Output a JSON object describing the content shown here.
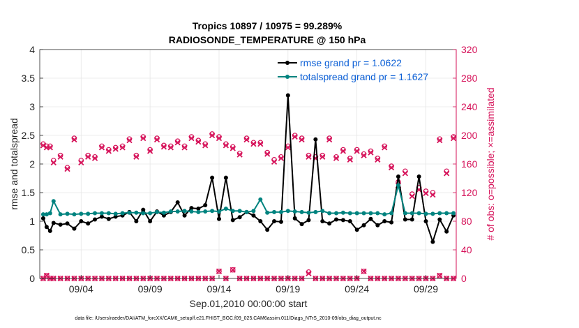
{
  "chart_data": {
    "type": "line",
    "title_line1": "Tropics 10897 / 10975 = 99.289%",
    "title_line2": "RADIOSONDE_TEMPERATURE @ 150 hPa",
    "xlabel": "Sep.01,2010 00:00:00 start",
    "ylabel_left": "rmse and totalspread",
    "ylabel_right": "# of obs: o=possible; ×=assimilated",
    "footnote": "data file: /Users/raeder/DAI/ATM_forcXX/CAM6_setup/f.e21.FHIST_BGC.f09_025.CAM6assim.011/Diags_NTrS_2010-09/obs_diag_output.nc",
    "xlim": [
      1.0,
      31.2
    ],
    "ylim_left": [
      0,
      4
    ],
    "ylim_right": [
      0,
      320
    ],
    "x_ticks": [
      4,
      9,
      14,
      19,
      24,
      29
    ],
    "x_tick_labels": [
      "09/04",
      "09/09",
      "09/14",
      "09/19",
      "09/24",
      "09/29"
    ],
    "y_left_ticks": [
      0,
      0.5,
      1,
      1.5,
      2,
      2.5,
      3,
      3.5,
      4
    ],
    "y_left_tick_labels": [
      "0",
      "0.5",
      "1",
      "1.5",
      "2",
      "2.5",
      "3",
      "3.5",
      "4"
    ],
    "y_right_ticks": [
      0,
      40,
      80,
      120,
      160,
      200,
      240,
      280,
      320
    ],
    "y_right_tick_labels": [
      "0",
      "40",
      "80",
      "120",
      "160",
      "200",
      "240",
      "280",
      "320"
    ],
    "colors": {
      "rmse": "#000000",
      "spread": "#00837f",
      "obs": "#d6135a",
      "legend_text": "#0b5fd6",
      "axis": "#262626"
    },
    "x": [
      1.25,
      1.5,
      1.75,
      2.0,
      2.5,
      3.0,
      3.5,
      4.0,
      4.5,
      5.0,
      5.5,
      6.0,
      6.5,
      7.0,
      7.5,
      8.0,
      8.5,
      9.0,
      9.5,
      10.0,
      10.5,
      11.0,
      11.5,
      12.0,
      12.5,
      13.0,
      13.5,
      14.0,
      14.5,
      15.0,
      15.5,
      16.0,
      16.5,
      17.0,
      17.5,
      18.0,
      18.5,
      19.0,
      19.5,
      20.0,
      20.5,
      21.0,
      21.5,
      22.0,
      22.5,
      23.0,
      23.5,
      24.0,
      24.5,
      25.0,
      25.5,
      26.0,
      26.5,
      27.0,
      27.5,
      28.0,
      28.5,
      29.0,
      29.5,
      30.0,
      30.5,
      31.0
    ],
    "series": [
      {
        "name": "rmse grand pr = 1.0622",
        "axis": "left",
        "values": [
          1.05,
          0.9,
          0.83,
          0.97,
          0.94,
          0.96,
          0.87,
          1.0,
          0.96,
          1.03,
          1.08,
          1.04,
          1.08,
          1.1,
          1.16,
          1.0,
          1.2,
          1.0,
          1.17,
          1.1,
          1.16,
          1.33,
          1.1,
          1.23,
          1.22,
          1.28,
          1.76,
          1.04,
          1.76,
          1.02,
          1.07,
          1.16,
          1.1,
          1.0,
          0.85,
          1.0,
          0.99,
          3.2,
          1.05,
          0.95,
          1.02,
          2.43,
          1.0,
          0.96,
          1.03,
          1.02,
          1.0,
          0.85,
          0.93,
          1.04,
          0.93,
          1.0,
          0.98,
          1.78,
          1.03,
          1.03,
          1.78,
          1.0,
          0.64,
          1.03,
          0.82,
          1.1
        ]
      },
      {
        "name": "totalspread grand pr = 1.1627",
        "axis": "left",
        "values": [
          1.12,
          1.12,
          1.14,
          1.35,
          1.12,
          1.13,
          1.12,
          1.13,
          1.13,
          1.14,
          1.14,
          1.14,
          1.13,
          1.14,
          1.15,
          1.15,
          1.14,
          1.14,
          1.16,
          1.15,
          1.17,
          1.17,
          1.18,
          1.17,
          1.16,
          1.17,
          1.18,
          1.17,
          1.22,
          1.18,
          1.18,
          1.16,
          1.18,
          1.38,
          1.15,
          1.16,
          1.16,
          1.18,
          1.17,
          1.16,
          1.15,
          1.16,
          1.18,
          1.14,
          1.14,
          1.15,
          1.14,
          1.14,
          1.14,
          1.14,
          1.14,
          1.12,
          1.14,
          1.63,
          1.14,
          1.14,
          1.14,
          1.13,
          1.13,
          1.14,
          1.14,
          1.14
        ]
      }
    ],
    "obs_possible": {
      "x": [
        1.25,
        1.5,
        1.75,
        2.0,
        2.5,
        3.0,
        3.5,
        4.0,
        4.5,
        5.0,
        5.5,
        6.0,
        6.5,
        7.0,
        7.5,
        8.0,
        8.5,
        9.0,
        9.5,
        10.0,
        10.5,
        11.0,
        11.5,
        12.0,
        12.5,
        13.0,
        13.5,
        14.0,
        14.5,
        15.0,
        15.5,
        16.0,
        16.5,
        17.0,
        17.5,
        18.0,
        18.5,
        19.0,
        19.5,
        20.0,
        20.5,
        21.0,
        21.5,
        22.0,
        22.5,
        23.0,
        23.5,
        24.0,
        24.5,
        25.0,
        25.5,
        26.0,
        26.5,
        27.0,
        27.5,
        28.0,
        28.5,
        29.0,
        29.5,
        30.0,
        30.5,
        31.0
      ],
      "values": [
        188,
        185,
        185,
        165,
        172,
        155,
        196,
        165,
        172,
        170,
        185,
        180,
        183,
        185,
        195,
        172,
        198,
        180,
        196,
        186,
        185,
        192,
        185,
        198,
        193,
        188,
        202,
        198,
        188,
        184,
        175,
        196,
        190,
        190,
        176,
        166,
        170,
        185,
        200,
        196,
        172,
        170,
        172,
        196,
        170,
        180,
        168,
        180,
        174,
        178,
        168,
        185,
        157,
        135,
        150,
        118,
        127,
        122,
        120,
        195,
        150,
        198
      ]
    },
    "obs_assimilated": {
      "x": [
        1.25,
        1.5,
        1.75,
        2.0,
        2.5,
        3.0,
        3.5,
        4.0,
        4.5,
        5.0,
        5.5,
        6.0,
        6.5,
        7.0,
        7.5,
        8.0,
        8.5,
        9.0,
        9.5,
        10.0,
        10.5,
        11.0,
        11.5,
        12.0,
        12.5,
        13.0,
        13.5,
        14.0,
        14.5,
        15.0,
        15.5,
        16.0,
        16.5,
        17.0,
        17.5,
        18.0,
        18.5,
        19.0,
        19.5,
        20.0,
        20.5,
        21.0,
        21.5,
        22.0,
        22.5,
        23.0,
        23.5,
        24.0,
        24.5,
        25.0,
        25.5,
        26.0,
        26.5,
        27.0,
        27.5,
        28.0,
        28.5,
        29.0,
        29.5,
        30.0,
        30.5,
        31.0
      ],
      "values": [
        186,
        183,
        183,
        162,
        170,
        153,
        194,
        162,
        170,
        168,
        183,
        178,
        181,
        183,
        193,
        170,
        196,
        178,
        194,
        184,
        183,
        190,
        183,
        196,
        191,
        186,
        200,
        196,
        186,
        182,
        173,
        194,
        188,
        188,
        174,
        163,
        168,
        183,
        198,
        194,
        170,
        168,
        170,
        194,
        168,
        178,
        166,
        178,
        172,
        176,
        166,
        183,
        155,
        130,
        147,
        115,
        124,
        119,
        117,
        193,
        147,
        196
      ]
    },
    "obs_bottom_possible": [
      0,
      4,
      0,
      0,
      0,
      0,
      0,
      0,
      0,
      0,
      0,
      0,
      0,
      0,
      0,
      0,
      0,
      0,
      0,
      0,
      0,
      0,
      0,
      0,
      0,
      0,
      0,
      10,
      0,
      12,
      0,
      0,
      0,
      0,
      0,
      0,
      0,
      0,
      0,
      0,
      9,
      0,
      0,
      0,
      0,
      0,
      0,
      0,
      10,
      0,
      0,
      0,
      0,
      0,
      0,
      0,
      0,
      0,
      0,
      4,
      0,
      0
    ],
    "obs_bottom_assimilated": [
      0,
      4,
      0,
      0,
      0,
      0,
      0,
      0,
      0,
      0,
      0,
      0,
      0,
      0,
      0,
      0,
      0,
      0,
      0,
      0,
      0,
      0,
      0,
      0,
      0,
      0,
      0,
      10,
      0,
      12,
      0,
      0,
      0,
      0,
      0,
      0,
      0,
      0,
      0,
      0,
      7,
      0,
      0,
      0,
      0,
      0,
      0,
      0,
      10,
      0,
      0,
      0,
      0,
      0,
      0,
      0,
      0,
      0,
      0,
      4,
      0,
      0
    ],
    "legend_position": "top-right"
  }
}
